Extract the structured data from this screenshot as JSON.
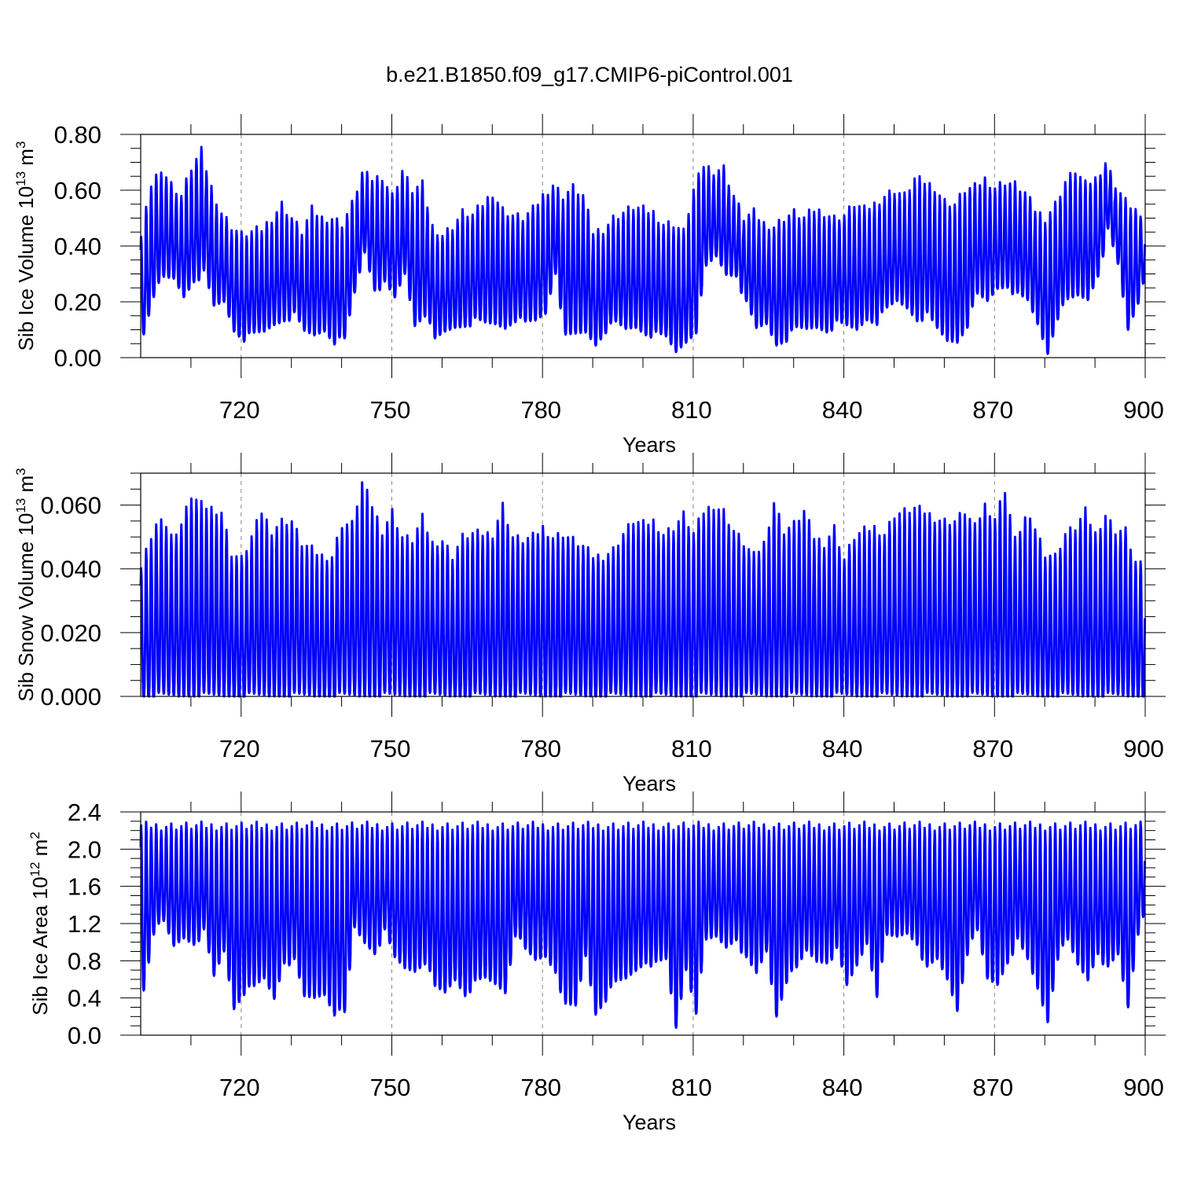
{
  "title": "b.e21.B1850.f09_g17.CMIP6-piControl.001",
  "colors": {
    "series": "#0000ff",
    "axis": "#000000",
    "grid": "#888888"
  },
  "chart_data": [
    {
      "type": "line",
      "ylabel_main": "Sib Ice Volume 10",
      "ylabel_exp": "13",
      "ylabel_unit": " m",
      "ylabel_unit_exp": "3",
      "xlabel": "Years",
      "xlim": [
        700,
        900
      ],
      "ylim": [
        0,
        0.8
      ],
      "x_ticks": [
        720,
        750,
        780,
        810,
        840,
        870,
        900
      ],
      "y_ticks": [
        "0.00",
        "0.20",
        "0.40",
        "0.60",
        "0.80"
      ],
      "y_tick_values": [
        0,
        0.2,
        0.4,
        0.6,
        0.8
      ],
      "grid": "vertical dashed at major x ticks",
      "series": [
        {
          "years": [
            700,
            702,
            704,
            706,
            708,
            710,
            712,
            714,
            716,
            718,
            720,
            722,
            724,
            726,
            728,
            730,
            732,
            734,
            736,
            738,
            740,
            742,
            744,
            746,
            748,
            750,
            752,
            754,
            756,
            758,
            760,
            762,
            764,
            766,
            768,
            770,
            772,
            774,
            776,
            778,
            780,
            782,
            784,
            786,
            788,
            790,
            792,
            794,
            796,
            798,
            800,
            802,
            804,
            806,
            808,
            810,
            812,
            814,
            816,
            818,
            820,
            822,
            824,
            826,
            828,
            830,
            832,
            834,
            836,
            838,
            840,
            842,
            844,
            846,
            848,
            850,
            852,
            854,
            856,
            858,
            860,
            862,
            864,
            866,
            868,
            870,
            872,
            874,
            876,
            878,
            880,
            882,
            884,
            886,
            888,
            890,
            892,
            894,
            896,
            898,
            900
          ],
          "annual_max": [
            0.43,
            0.62,
            0.68,
            0.62,
            0.58,
            0.68,
            0.74,
            0.61,
            0.52,
            0.47,
            0.44,
            0.45,
            0.46,
            0.5,
            0.55,
            0.5,
            0.45,
            0.53,
            0.5,
            0.5,
            0.48,
            0.55,
            0.66,
            0.64,
            0.65,
            0.58,
            0.67,
            0.6,
            0.62,
            0.47,
            0.44,
            0.47,
            0.52,
            0.51,
            0.55,
            0.59,
            0.53,
            0.51,
            0.5,
            0.53,
            0.58,
            0.62,
            0.58,
            0.61,
            0.58,
            0.45,
            0.46,
            0.5,
            0.52,
            0.54,
            0.53,
            0.52,
            0.48,
            0.48,
            0.45,
            0.6,
            0.69,
            0.67,
            0.68,
            0.58,
            0.5,
            0.52,
            0.48,
            0.47,
            0.5,
            0.52,
            0.5,
            0.53,
            0.52,
            0.5,
            0.51,
            0.55,
            0.53,
            0.55,
            0.58,
            0.6,
            0.58,
            0.64,
            0.63,
            0.61,
            0.56,
            0.55,
            0.6,
            0.61,
            0.64,
            0.61,
            0.63,
            0.62,
            0.59,
            0.53,
            0.5,
            0.55,
            0.63,
            0.67,
            0.62,
            0.64,
            0.7,
            0.62,
            0.56,
            0.53,
            0.45
          ],
          "annual_min": [
            0.09,
            0.23,
            0.28,
            0.28,
            0.22,
            0.28,
            0.3,
            0.18,
            0.2,
            0.1,
            0.07,
            0.08,
            0.09,
            0.12,
            0.14,
            0.15,
            0.09,
            0.08,
            0.1,
            0.06,
            0.06,
            0.23,
            0.38,
            0.25,
            0.26,
            0.21,
            0.3,
            0.12,
            0.16,
            0.06,
            0.09,
            0.11,
            0.12,
            0.13,
            0.12,
            0.12,
            0.11,
            0.14,
            0.12,
            0.13,
            0.16,
            0.31,
            0.07,
            0.08,
            0.09,
            0.05,
            0.1,
            0.12,
            0.1,
            0.11,
            0.09,
            0.08,
            0.07,
            0.02,
            0.06,
            0.1,
            0.32,
            0.36,
            0.3,
            0.3,
            0.19,
            0.1,
            0.12,
            0.05,
            0.07,
            0.1,
            0.1,
            0.11,
            0.1,
            0.12,
            0.11,
            0.1,
            0.14,
            0.13,
            0.17,
            0.2,
            0.18,
            0.14,
            0.15,
            0.1,
            0.06,
            0.06,
            0.12,
            0.22,
            0.2,
            0.25,
            0.26,
            0.22,
            0.2,
            0.12,
            0.02,
            0.15,
            0.2,
            0.22,
            0.21,
            0.3,
            0.45,
            0.33,
            0.1,
            0.2,
            0.35
          ]
        }
      ]
    },
    {
      "type": "line",
      "ylabel_main": "Sib Snow Volume 10",
      "ylabel_exp": "13",
      "ylabel_unit": " m",
      "ylabel_unit_exp": "3",
      "xlabel": "Years",
      "xlim": [
        700,
        900
      ],
      "ylim": [
        0,
        0.07
      ],
      "x_ticks": [
        720,
        750,
        780,
        810,
        840,
        870,
        900
      ],
      "y_ticks": [
        "0.000",
        "0.020",
        "0.040",
        "0.060"
      ],
      "y_tick_values": [
        0,
        0.02,
        0.04,
        0.06
      ],
      "grid": "vertical dashed at major x ticks",
      "series": [
        {
          "years": [
            700,
            702,
            704,
            706,
            708,
            710,
            712,
            714,
            716,
            718,
            720,
            722,
            724,
            726,
            728,
            730,
            732,
            734,
            736,
            738,
            740,
            742,
            744,
            746,
            748,
            750,
            752,
            754,
            756,
            758,
            760,
            762,
            764,
            766,
            768,
            770,
            772,
            774,
            776,
            778,
            780,
            782,
            784,
            786,
            788,
            790,
            792,
            794,
            796,
            798,
            800,
            802,
            804,
            806,
            808,
            810,
            812,
            814,
            816,
            818,
            820,
            822,
            824,
            826,
            828,
            830,
            832,
            834,
            836,
            838,
            840,
            842,
            844,
            846,
            848,
            850,
            852,
            854,
            856,
            858,
            860,
            862,
            864,
            866,
            868,
            870,
            872,
            874,
            876,
            878,
            880,
            882,
            884,
            886,
            888,
            890,
            892,
            894,
            896,
            898,
            900
          ],
          "annual_max": [
            0.04,
            0.05,
            0.057,
            0.05,
            0.054,
            0.063,
            0.06,
            0.059,
            0.058,
            0.045,
            0.043,
            0.05,
            0.058,
            0.052,
            0.055,
            0.055,
            0.048,
            0.046,
            0.044,
            0.044,
            0.054,
            0.054,
            0.067,
            0.06,
            0.052,
            0.058,
            0.05,
            0.049,
            0.056,
            0.048,
            0.049,
            0.044,
            0.05,
            0.051,
            0.051,
            0.051,
            0.06,
            0.05,
            0.049,
            0.05,
            0.053,
            0.05,
            0.051,
            0.049,
            0.047,
            0.044,
            0.044,
            0.046,
            0.051,
            0.055,
            0.054,
            0.055,
            0.051,
            0.053,
            0.057,
            0.051,
            0.058,
            0.06,
            0.058,
            0.052,
            0.048,
            0.044,
            0.048,
            0.061,
            0.052,
            0.054,
            0.058,
            0.05,
            0.048,
            0.053,
            0.043,
            0.05,
            0.052,
            0.053,
            0.051,
            0.057,
            0.058,
            0.059,
            0.058,
            0.056,
            0.055,
            0.055,
            0.058,
            0.053,
            0.06,
            0.056,
            0.065,
            0.049,
            0.056,
            0.053,
            0.045,
            0.044,
            0.051,
            0.053,
            0.058,
            0.051,
            0.057,
            0.052,
            0.052,
            0.042,
            0.04
          ],
          "annual_min": [
            0.0,
            0.0,
            0.0,
            0.0,
            0.0,
            0.0,
            0.0,
            0.0,
            0.0,
            0.0,
            0.0,
            0.0,
            0.0,
            0.0,
            0.0,
            0.0,
            0.0,
            0.0,
            0.0,
            0.0,
            0.0,
            0.0,
            0.0,
            0.0,
            0.0,
            0.0,
            0.0,
            0.0,
            0.0,
            0.0,
            0.0,
            0.0,
            0.0,
            0.0,
            0.0,
            0.0,
            0.0,
            0.0,
            0.0,
            0.0,
            0.0,
            0.0,
            0.0,
            0.0,
            0.0,
            0.0,
            0.0,
            0.0,
            0.0,
            0.0,
            0.0,
            0.0,
            0.0,
            0.0,
            0.0,
            0.0,
            0.0,
            0.0,
            0.0,
            0.0,
            0.0,
            0.0,
            0.0,
            0.0,
            0.0,
            0.0,
            0.0,
            0.0,
            0.0,
            0.0,
            0.0,
            0.0,
            0.0,
            0.0,
            0.0,
            0.0,
            0.0,
            0.0,
            0.0,
            0.0,
            0.0,
            0.0,
            0.0,
            0.0,
            0.0,
            0.0,
            0.0,
            0.0,
            0.0,
            0.0,
            0.0,
            0.0,
            0.0,
            0.0,
            0.0,
            0.0,
            0.0,
            0.0,
            0.0,
            0.0,
            0.0
          ]
        }
      ]
    },
    {
      "type": "line",
      "ylabel_main": "Sib Ice Area 10",
      "ylabel_exp": "12",
      "ylabel_unit": " m",
      "ylabel_unit_exp": "2",
      "xlabel": "Years",
      "xlim": [
        700,
        900
      ],
      "ylim": [
        0,
        2.4
      ],
      "x_ticks": [
        720,
        750,
        780,
        810,
        840,
        870,
        900
      ],
      "y_ticks": [
        "0.0",
        "0.4",
        "0.8",
        "1.2",
        "1.6",
        "2.0",
        "2.4"
      ],
      "y_tick_values": [
        0,
        0.4,
        0.8,
        1.2,
        1.6,
        2.0,
        2.4
      ],
      "grid": "vertical dashed at major x ticks",
      "series": [
        {
          "years": [
            700,
            702,
            704,
            706,
            708,
            710,
            712,
            714,
            716,
            718,
            720,
            722,
            724,
            726,
            728,
            730,
            732,
            734,
            736,
            738,
            740,
            742,
            744,
            746,
            748,
            750,
            752,
            754,
            756,
            758,
            760,
            762,
            764,
            766,
            768,
            770,
            772,
            774,
            776,
            778,
            780,
            782,
            784,
            786,
            788,
            790,
            792,
            794,
            796,
            798,
            800,
            802,
            804,
            806,
            808,
            810,
            812,
            814,
            816,
            818,
            820,
            822,
            824,
            826,
            828,
            830,
            832,
            834,
            836,
            838,
            840,
            842,
            844,
            846,
            848,
            850,
            852,
            854,
            856,
            858,
            860,
            862,
            864,
            866,
            868,
            870,
            872,
            874,
            876,
            878,
            880,
            882,
            884,
            886,
            888,
            890,
            892,
            894,
            896,
            898,
            900
          ],
          "annual_max": [
            2.25,
            2.25,
            2.25,
            2.25,
            2.25,
            2.25,
            2.25,
            2.25,
            2.25,
            2.25,
            2.25,
            2.25,
            2.25,
            2.25,
            2.25,
            2.25,
            2.25,
            2.25,
            2.25,
            2.25,
            2.25,
            2.25,
            2.25,
            2.25,
            2.25,
            2.25,
            2.25,
            2.25,
            2.25,
            2.25,
            2.25,
            2.25,
            2.25,
            2.25,
            2.25,
            2.25,
            2.25,
            2.25,
            2.25,
            2.25,
            2.25,
            2.25,
            2.25,
            2.25,
            2.25,
            2.25,
            2.25,
            2.25,
            2.25,
            2.25,
            2.25,
            2.25,
            2.25,
            2.25,
            2.25,
            2.25,
            2.25,
            2.25,
            2.25,
            2.25,
            2.25,
            2.25,
            2.25,
            2.25,
            2.25,
            2.25,
            2.25,
            2.25,
            2.25,
            2.25,
            2.25,
            2.25,
            2.25,
            2.25,
            2.25,
            2.25,
            2.25,
            2.25,
            2.25,
            2.25,
            2.25,
            2.25,
            2.25,
            2.25,
            2.25,
            2.25,
            2.25,
            2.25,
            2.25,
            2.25,
            2.25,
            2.25,
            2.25,
            2.25,
            2.25,
            2.25,
            2.25,
            2.25,
            2.25,
            2.25,
            2.25
          ],
          "annual_min": [
            0.5,
            1.12,
            1.2,
            0.95,
            1.05,
            1.0,
            1.1,
            0.62,
            0.9,
            0.3,
            0.47,
            0.5,
            0.6,
            0.4,
            0.8,
            0.78,
            0.4,
            0.4,
            0.45,
            0.25,
            0.22,
            1.15,
            1.0,
            0.9,
            1.1,
            0.82,
            0.72,
            0.7,
            0.8,
            0.5,
            0.45,
            0.6,
            0.45,
            0.55,
            0.6,
            0.55,
            0.47,
            1.1,
            0.9,
            0.8,
            0.85,
            0.7,
            0.3,
            0.3,
            0.85,
            0.24,
            0.4,
            0.55,
            0.6,
            0.7,
            0.8,
            0.75,
            0.8,
            0.08,
            0.72,
            0.27,
            1.0,
            1.05,
            0.95,
            1.05,
            0.8,
            0.65,
            0.9,
            0.22,
            0.6,
            0.7,
            0.9,
            0.8,
            0.8,
            0.9,
            0.52,
            0.75,
            1.0,
            0.45,
            1.05,
            1.05,
            1.1,
            1.0,
            0.7,
            0.8,
            0.6,
            0.28,
            0.9,
            1.1,
            0.6,
            0.55,
            0.8,
            1.0,
            0.8,
            0.5,
            0.16,
            0.85,
            1.0,
            0.75,
            0.6,
            0.9,
            0.7,
            0.85,
            0.3,
            1.1,
            1.5
          ]
        }
      ]
    }
  ]
}
